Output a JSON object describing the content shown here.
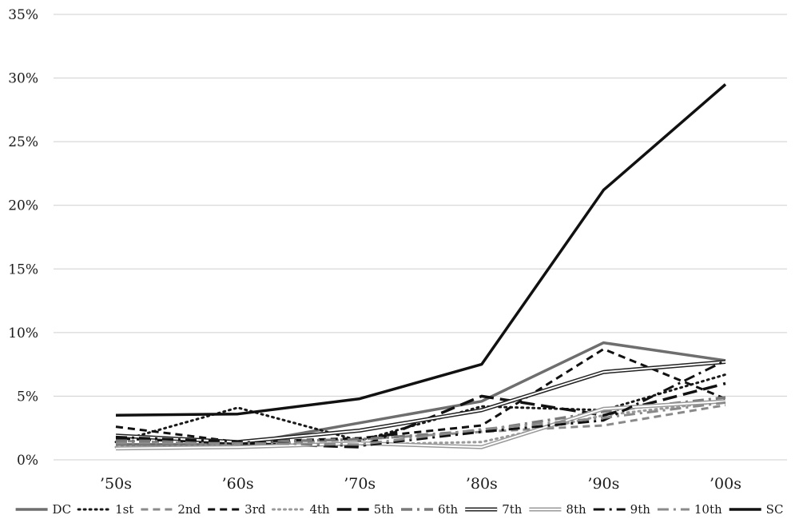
{
  "chart_data": {
    "type": "line",
    "categories": [
      "’50s",
      "’60s",
      "’70s",
      "’80s",
      "’90s",
      "’00s"
    ],
    "ylim": [
      0,
      35
    ],
    "yticks": [
      0,
      5,
      10,
      15,
      20,
      25,
      30,
      35
    ],
    "ytick_labels": [
      "0%",
      "5%",
      "10%",
      "15%",
      "20%",
      "25%",
      "30%",
      "35%"
    ],
    "grid": "horizontal",
    "legend": "bottom",
    "series": [
      {
        "name": "DC",
        "values": [
          1.2,
          1.2,
          2.9,
          4.6,
          9.2,
          7.8
        ],
        "color": "#6e6e6e",
        "style": "solid",
        "width": 3.5
      },
      {
        "name": "1st",
        "values": [
          1.4,
          4.1,
          1.5,
          4.2,
          3.9,
          6.7
        ],
        "color": "#1a1a1a",
        "style": "dotted",
        "width": 3
      },
      {
        "name": "2nd",
        "values": [
          1.5,
          1.2,
          1.6,
          2.2,
          2.7,
          4.3
        ],
        "color": "#8a8a8a",
        "style": "dashed",
        "width": 3
      },
      {
        "name": "3rd",
        "values": [
          2.6,
          1.4,
          1.7,
          2.7,
          8.7,
          4.8
        ],
        "color": "#111111",
        "style": "dashed",
        "width": 3
      },
      {
        "name": "4th",
        "values": [
          1.0,
          1.1,
          1.2,
          1.4,
          3.5,
          4.6
        ],
        "color": "#9a9a9a",
        "style": "dotted",
        "width": 3
      },
      {
        "name": "5th",
        "values": [
          1.7,
          1.3,
          1.0,
          5.0,
          3.5,
          6.0
        ],
        "color": "#111111",
        "style": "longdash",
        "width": 3.5
      },
      {
        "name": "6th",
        "values": [
          1.5,
          1.4,
          1.6,
          2.3,
          3.8,
          4.9
        ],
        "color": "#7a7a7a",
        "style": "dashdot",
        "width": 3.5
      },
      {
        "name": "7th",
        "values": [
          1.9,
          1.4,
          2.3,
          3.9,
          6.9,
          7.7
        ],
        "color": "#222222",
        "style": "double",
        "width": 1.5
      },
      {
        "name": "8th",
        "values": [
          0.9,
          1.0,
          1.3,
          1.0,
          4.0,
          4.6
        ],
        "color": "#9a9a9a",
        "style": "double",
        "width": 1.5
      },
      {
        "name": "9th",
        "values": [
          1.8,
          1.4,
          1.1,
          2.2,
          3.1,
          7.8
        ],
        "color": "#111111",
        "style": "dashdot",
        "width": 3
      },
      {
        "name": "10th",
        "values": [
          1.3,
          1.3,
          1.2,
          2.4,
          3.3,
          4.5
        ],
        "color": "#8a8a8a",
        "style": "dashdot",
        "width": 3
      },
      {
        "name": "SC",
        "values": [
          3.5,
          3.6,
          4.8,
          7.5,
          21.2,
          29.5
        ],
        "color": "#111111",
        "style": "solid",
        "width": 3.5
      }
    ]
  }
}
